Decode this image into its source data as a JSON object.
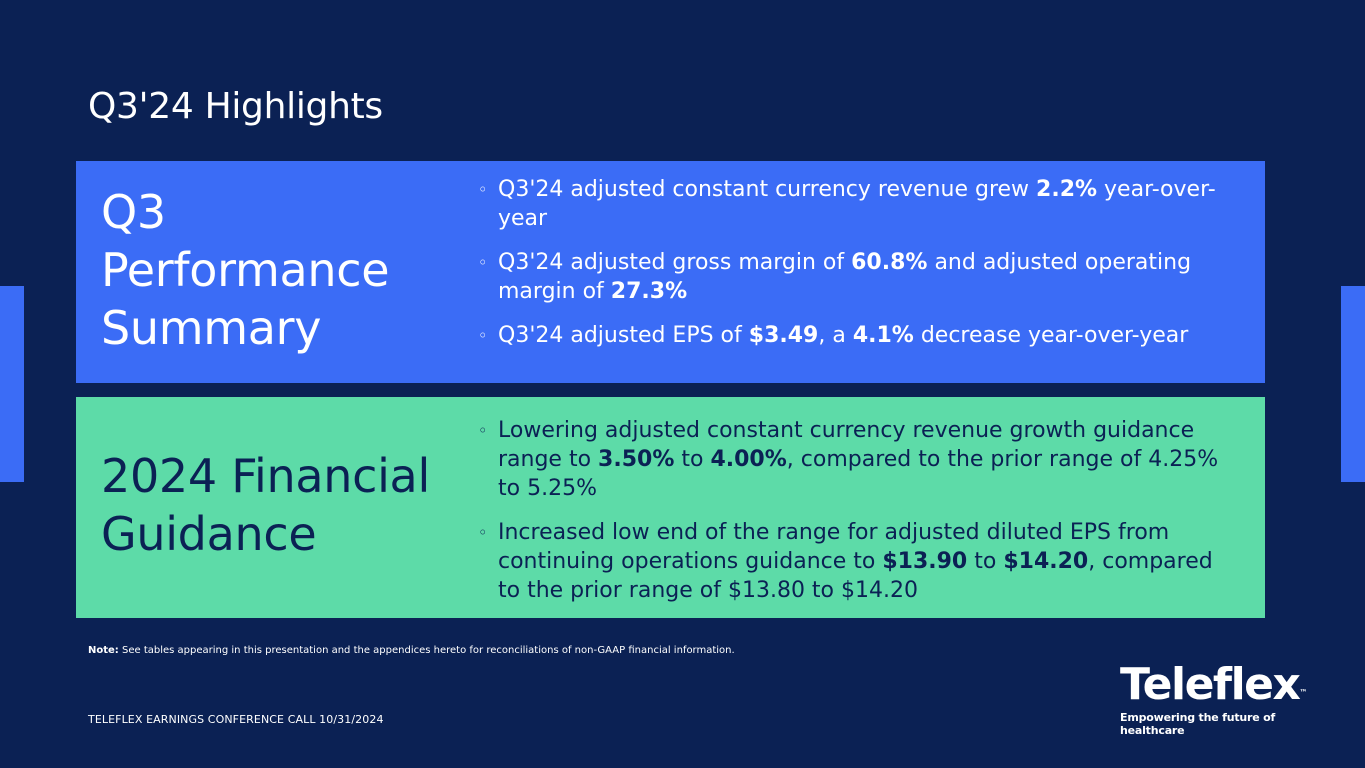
{
  "title": "Q3'24 Highlights",
  "colors": {
    "background": "#0b2154",
    "performance_panel": "#3b6cf6",
    "guidance_panel": "#5ddba8",
    "dark_text": "#0b2154"
  },
  "bullet_icon": "hollow-circle-bullet",
  "performance": {
    "heading": "Q3\nPerformance\nSummary",
    "bullets": [
      {
        "t1": "Q3'24 adjusted constant currency revenue grew ",
        "b1": "2.2%",
        "t2": " year-over-year"
      },
      {
        "t1": "Q3'24 adjusted gross margin of ",
        "b1": "60.8%",
        "t2": " and adjusted operating margin of ",
        "b2": "27.3%"
      },
      {
        "t1": "Q3'24 adjusted EPS of ",
        "b1": "$3.49",
        "t2": ", a ",
        "b2": "4.1%",
        "t3": " decrease year-over-year"
      }
    ]
  },
  "guidance": {
    "heading": "2024 Financial\nGuidance",
    "bullets": [
      {
        "t1": "Lowering adjusted constant currency revenue growth guidance range to ",
        "b1": "3.50%",
        "t2": " to ",
        "b2": "4.00%",
        "t3": ", compared to the prior range of 4.25% to 5.25%"
      },
      {
        "t1": "Increased low end of the range for adjusted diluted EPS from continuing operations guidance to ",
        "b1": "$13.90",
        "t2": " to ",
        "b2": "$14.20",
        "t3": ", compared to the prior range of $13.80 to $14.20"
      }
    ]
  },
  "note": {
    "label": "Note:",
    "text": " See tables appearing in this presentation and the appendices hereto for reconciliations of non-GAAP financial information."
  },
  "footer": "TELEFLEX EARNINGS CONFERENCE CALL 10/31/2024",
  "logo": {
    "wordmark": "Teleflex",
    "tm": "™",
    "tagline": "Empowering the future of healthcare"
  }
}
